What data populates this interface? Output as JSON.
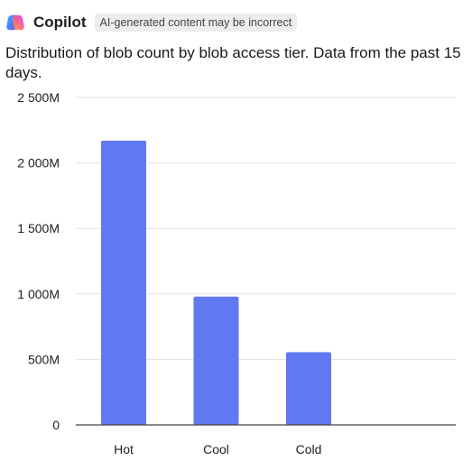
{
  "header": {
    "app_name": "Copilot",
    "disclaimer": "AI-generated content may be incorrect",
    "logo_icon": "copilot-logo-icon"
  },
  "chart_data": {
    "type": "bar",
    "title": "Distribution of blob count by blob access tier. Data from the past 15 days.",
    "xlabel": "",
    "ylabel": "",
    "categories": [
      "Hot",
      "Cool",
      "Cold"
    ],
    "values": [
      2170,
      980,
      555
    ],
    "ylim": [
      0,
      2500
    ],
    "yticks": [
      0,
      500,
      1000,
      1500,
      2000,
      2500
    ],
    "ytick_labels": [
      "0",
      "500M",
      "1 000M",
      "1 500M",
      "2 000M",
      "2 500M"
    ],
    "grid": true,
    "legend": "none",
    "bar_color": "#6179f0"
  }
}
